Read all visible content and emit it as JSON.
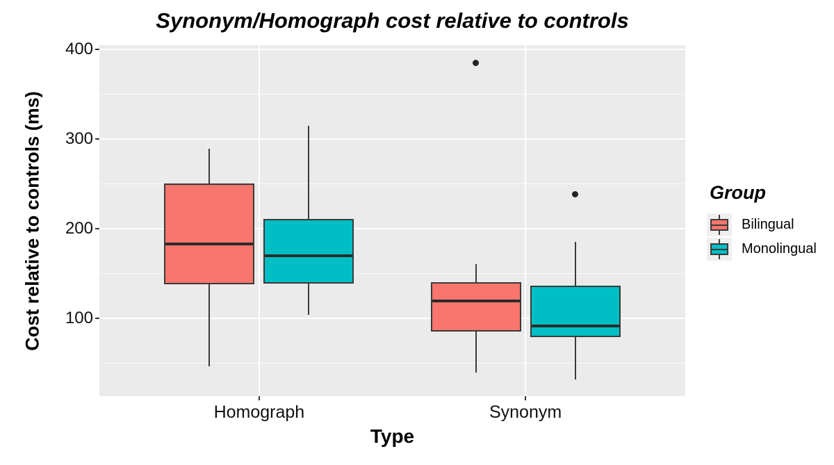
{
  "chart_data": {
    "type": "boxplot",
    "title": "Synonym/Homograph cost relative to controls",
    "xlabel": "Type",
    "ylabel": "Cost relative to controls (ms)",
    "categories": [
      "Homograph",
      "Synonym"
    ],
    "yticks": [
      400,
      300,
      200,
      100
    ],
    "minor_gridlines": [
      350,
      250,
      150,
      50
    ],
    "ylim": [
      13,
      405
    ],
    "grid": "white major and minor horizontal lines plus white vertical lines at category centers on gray panel",
    "legend": {
      "title": "Group",
      "position": "right",
      "entries": [
        {
          "label": "Bilingual",
          "color": "#F8766D"
        },
        {
          "label": "Monolingual",
          "color": "#00BFC4"
        }
      ]
    },
    "series": [
      {
        "name": "Bilingual",
        "color": "#F8766D",
        "boxes": [
          {
            "category": "Homograph",
            "lower_whisker": 46,
            "q1": 138,
            "median": 183,
            "q3": 250,
            "upper_whisker": 289,
            "outliers": []
          },
          {
            "category": "Synonym",
            "lower_whisker": 39,
            "q1": 85,
            "median": 119,
            "q3": 140,
            "upper_whisker": 160,
            "outliers": [
              385
            ]
          }
        ]
      },
      {
        "name": "Monolingual",
        "color": "#00BFC4",
        "boxes": [
          {
            "category": "Homograph",
            "lower_whisker": 104,
            "q1": 139,
            "median": 170,
            "q3": 211,
            "upper_whisker": 315,
            "outliers": []
          },
          {
            "category": "Synonym",
            "lower_whisker": 32,
            "q1": 79,
            "median": 91,
            "q3": 136,
            "upper_whisker": 185,
            "outliers": [
              238
            ]
          }
        ]
      }
    ],
    "colors": {
      "figure_background": "#FFFFFF",
      "panel_background": "#EBEBEB",
      "gridline": "#FFFFFF",
      "box_border": "#3A3A3A",
      "median_line": "#2B2B2B",
      "outlier": "#222222",
      "tick_mark": "#333333"
    }
  }
}
